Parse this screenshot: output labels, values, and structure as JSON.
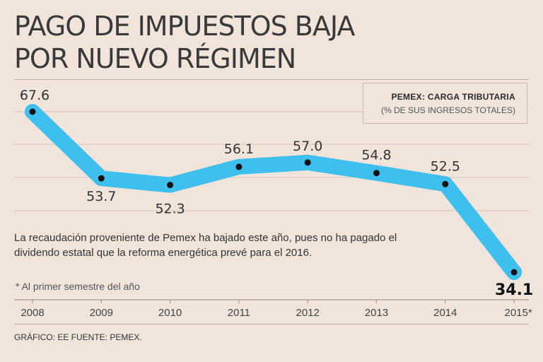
{
  "title_lines": [
    "PAGO DE IMPUESTOS BAJA",
    "POR NUEVO RÉGIMEN"
  ],
  "legend": {
    "title": "PEMEX: CARGA TRIBUTARIA",
    "subtitle": "(% DE SUS INGRESOS TOTALES)"
  },
  "note": "La recaudación proveniente de Pemex ha bajado este año, pues no ha pagado el dividendo estatal que la reforma energética prevé para el 2016.",
  "footnote": "* Al primer semestre del año",
  "source": "GRÁFICO: EE  FUENTE: PEMEX.",
  "colors": {
    "line": "#3ec0ee",
    "point": "#111111",
    "background": "#f1e4da",
    "grid": "#d9c9be"
  },
  "chart_data": {
    "type": "line",
    "title": "PEMEX: CARGA TRIBUTARIA",
    "ylabel": "% DE SUS INGRESOS TOTALES",
    "categories": [
      "2008",
      "2009",
      "2010",
      "2011",
      "2012",
      "2013",
      "2014",
      "2015*"
    ],
    "series": [
      {
        "name": "Carga tributaria",
        "values": [
          67.6,
          53.7,
          52.3,
          56.1,
          57.0,
          54.8,
          52.5,
          34.1
        ]
      }
    ],
    "data_labels": [
      "67.6",
      "53.7",
      "52.3",
      "56.1",
      "57.0",
      "54.8",
      "52.5",
      "34.1"
    ],
    "ylim": [
      30,
      75
    ],
    "grid": true
  }
}
